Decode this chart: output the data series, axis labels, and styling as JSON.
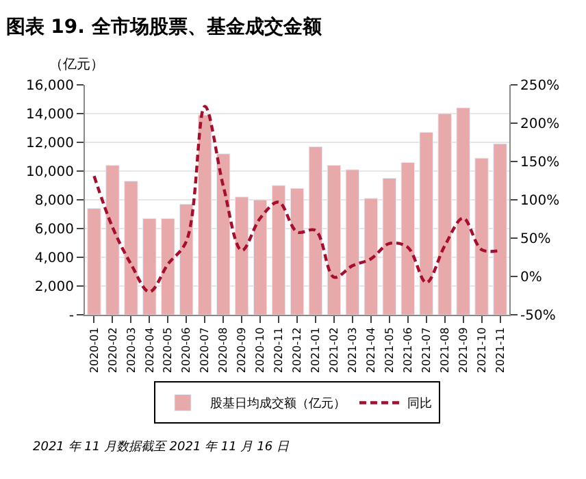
{
  "chart_data": {
    "type": "bar",
    "title": "图表 19. 全市场股票、基金成交金额",
    "ylabel": "（亿元）",
    "categories": [
      "2020-01",
      "2020-02",
      "2020-03",
      "2020-04",
      "2020-05",
      "2020-06",
      "2020-07",
      "2020-08",
      "2020-09",
      "2020-10",
      "2020-11",
      "2020-12",
      "2021-01",
      "2021-02",
      "2021-03",
      "2021-04",
      "2021-05",
      "2021-06",
      "2021-07",
      "2021-08",
      "2021-09",
      "2021-10",
      "2021-11"
    ],
    "series": [
      {
        "name": "股基日均成交额（亿元）",
        "color": "#e8a9aa",
        "values": [
          7400,
          10400,
          9300,
          6700,
          6700,
          7700,
          13900,
          11200,
          8200,
          8000,
          9000,
          8800,
          11700,
          10400,
          10100,
          8100,
          9500,
          10600,
          12700,
          14000,
          14400,
          10900,
          11900
        ]
      },
      {
        "name": "同比",
        "type": "line",
        "axis": "y2",
        "color": "#a50f2d",
        "line_style": "dashed",
        "values": [
          131,
          64,
          16,
          -20,
          16,
          46,
          222,
          118,
          34,
          76,
          97,
          58,
          60,
          -1,
          14,
          23,
          43,
          38,
          -8,
          40,
          76,
          35,
          34
        ]
      }
    ],
    "ylim": [
      0,
      16000
    ],
    "yticks": [
      {
        "value": 0,
        "label": "-"
      },
      {
        "value": 2000,
        "label": "2,000"
      },
      {
        "value": 4000,
        "label": "4,000"
      },
      {
        "value": 6000,
        "label": "6,000"
      },
      {
        "value": 8000,
        "label": "8,000"
      },
      {
        "value": 10000,
        "label": "10,000"
      },
      {
        "value": 12000,
        "label": "12,000"
      },
      {
        "value": 14000,
        "label": "14,000"
      },
      {
        "value": 16000,
        "label": "16,000"
      }
    ],
    "y2lim": [
      -50,
      250
    ],
    "y2ticks": [
      {
        "value": -50,
        "label": "-50%"
      },
      {
        "value": 0,
        "label": "0%"
      },
      {
        "value": 50,
        "label": "50%"
      },
      {
        "value": 100,
        "label": "100%"
      },
      {
        "value": 150,
        "label": "150%"
      },
      {
        "value": 200,
        "label": "200%"
      },
      {
        "value": 250,
        "label": "250%"
      }
    ],
    "grid": "y",
    "legend": "bottom",
    "marker": "none",
    "annotations": [
      "2021 年 11 月数据截至 2021 年 11 月 16 日"
    ]
  }
}
